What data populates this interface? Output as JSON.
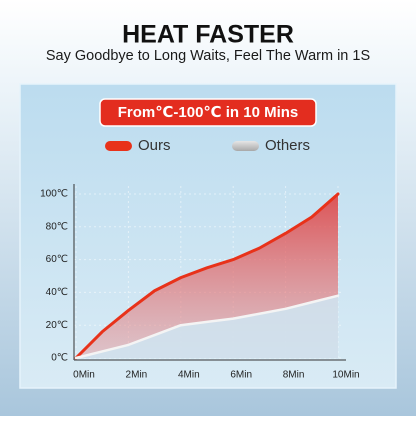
{
  "header": {
    "title": "HEAT FASTER",
    "subtitle": "Say Goodbye to Long Waits, Feel The Warm in 1S"
  },
  "chart_data": {
    "type": "line",
    "title": "From℃-100℃ in 10 Mins",
    "x": [
      0,
      1,
      2,
      3,
      4,
      5,
      6,
      7,
      8,
      9,
      10
    ],
    "series": [
      {
        "name": "Ours",
        "color": "#e8321a",
        "values": [
          0,
          16,
          29,
          41,
          49,
          55,
          60,
          67,
          76,
          86,
          100
        ]
      },
      {
        "name": "Others",
        "color": "#f4f4f4",
        "values": [
          0,
          4,
          8,
          14,
          20,
          22,
          24,
          27,
          30,
          34,
          38
        ]
      }
    ],
    "xlim": [
      0,
      10
    ],
    "xticks": [
      {
        "value": 0,
        "label": "0Min"
      },
      {
        "value": 2,
        "label": "2Min"
      },
      {
        "value": 4,
        "label": "4Min"
      },
      {
        "value": 6,
        "label": "6Min"
      },
      {
        "value": 8,
        "label": "8Min"
      },
      {
        "value": 10,
        "label": "10Min"
      }
    ],
    "ylim": [
      0,
      100
    ],
    "yticks": [
      {
        "value": 0,
        "label": "0℃"
      },
      {
        "value": 20,
        "label": "20℃"
      },
      {
        "value": 40,
        "label": "40℃"
      },
      {
        "value": 60,
        "label": "60℃"
      },
      {
        "value": 80,
        "label": "80℃"
      },
      {
        "value": 100,
        "label": "100℃"
      }
    ],
    "grid": true
  }
}
